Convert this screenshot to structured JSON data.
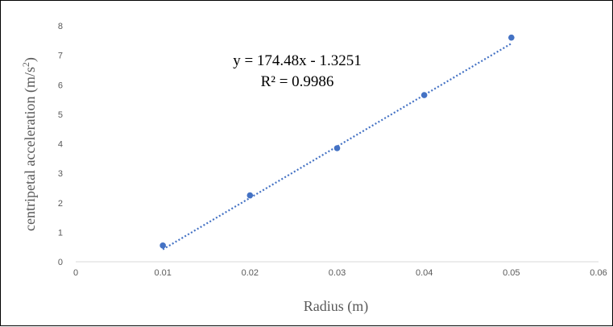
{
  "chart_data": {
    "type": "scatter",
    "title": "",
    "xlabel": "Radius (m)",
    "ylabel_main": "centripetal acceleration (m/s",
    "ylabel_sup": "2",
    "ylabel_end": ")",
    "xlim": [
      0,
      0.06
    ],
    "ylim": [
      0,
      8
    ],
    "x_ticks": [
      0,
      0.01,
      0.02,
      0.03,
      0.04,
      0.05,
      0.06
    ],
    "x_tick_labels": [
      "0",
      "0.01",
      "0.02",
      "0.03",
      "0.04",
      "0.05",
      "0.06"
    ],
    "y_ticks": [
      0,
      1,
      2,
      3,
      4,
      5,
      6,
      7,
      8
    ],
    "y_tick_labels": [
      "0",
      "1",
      "2",
      "3",
      "4",
      "5",
      "6",
      "7",
      "8"
    ],
    "grid": false,
    "legend": "none",
    "series": [
      {
        "x": [
          0.01,
          0.02,
          0.03,
          0.04,
          0.05
        ],
        "y": [
          0.55,
          2.25,
          3.85,
          5.65,
          7.6
        ],
        "color": "#4472C4"
      }
    ],
    "trendline": {
      "type": "linear",
      "slope": 174.48,
      "intercept": -1.3251,
      "x_range": [
        0.01,
        0.05
      ],
      "style": "dotted",
      "color": "#4472C4",
      "equation_label": "y = 174.48x - 1.3251",
      "r2_label": "R² = 0.9986"
    }
  }
}
